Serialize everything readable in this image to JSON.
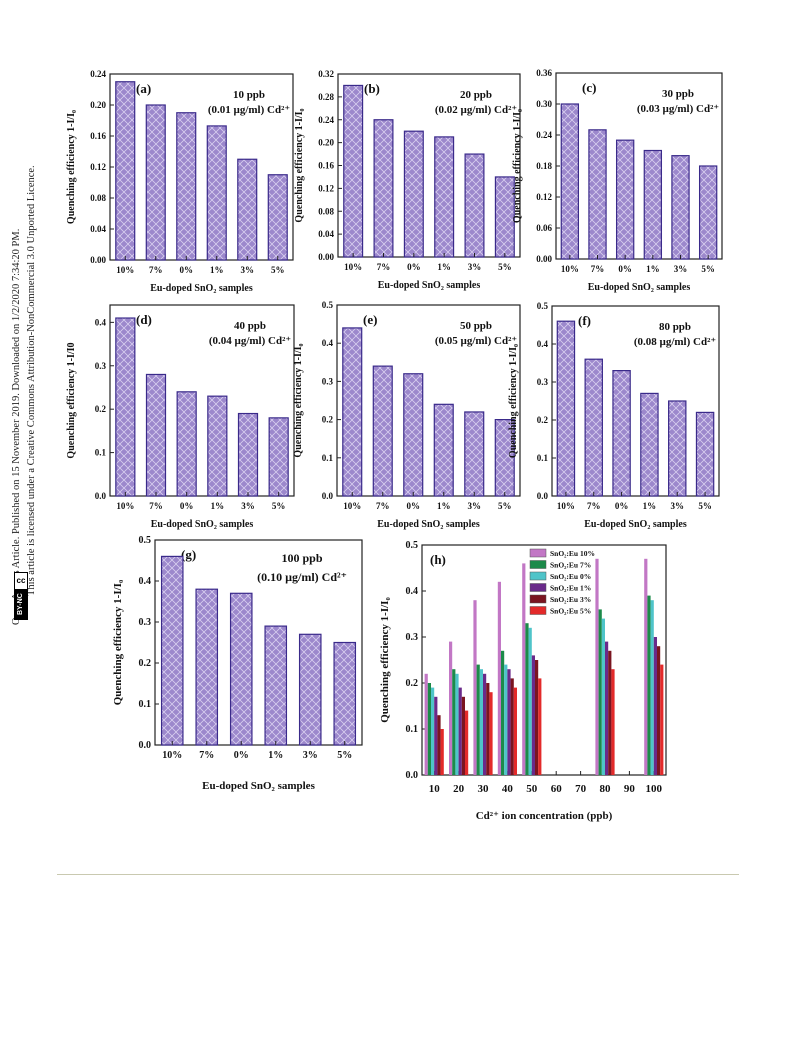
{
  "license_sidebar": {
    "line1": "Open Access Article. Published on 15 November 2019. Downloaded on 1/2/2020 7:34:20 PM.",
    "line2": "This article is licensed under a Creative Commons Attribution-NonCommercial 3.0 Unported Licence.",
    "cc_label": "cc",
    "nc_label": "BY-NC"
  },
  "colors": {
    "bar_fill": "#9c88cc",
    "bar_edge": "#3a2a8a",
    "axis": "#222222"
  },
  "chart_data": [
    {
      "type": "bar",
      "panel": "(a)",
      "annotation_line1": "10 ppb",
      "annotation_line2": "(0.01 µg/ml) Cd²⁺",
      "categories": [
        "10%",
        "7%",
        "0%",
        "1%",
        "3%",
        "5%"
      ],
      "values": [
        0.23,
        0.2,
        0.19,
        0.173,
        0.13,
        0.11
      ],
      "xlabel": "Eu-doped SnO₂ samples",
      "ylabel": "Quenching efficiency 1-I/I₀",
      "ylim": [
        0,
        0.24
      ],
      "ytick_labels": [
        "0.00",
        "0.04",
        "0.08",
        "0.12",
        "0.16",
        "0.20",
        "0.24"
      ]
    },
    {
      "type": "bar",
      "panel": "(b)",
      "annotation_line1": "20 ppb",
      "annotation_line2": "(0.02 µg/ml) Cd²⁺",
      "categories": [
        "10%",
        "7%",
        "0%",
        "1%",
        "3%",
        "5%"
      ],
      "values": [
        0.3,
        0.24,
        0.22,
        0.21,
        0.18,
        0.14
      ],
      "xlabel": "Eu-doped SnO₂ samples",
      "ylabel": "Quenching efficiency 1-I/I₀",
      "ylim": [
        0,
        0.32
      ],
      "ytick_labels": [
        "0.00",
        "0.04",
        "0.08",
        "0.12",
        "0.16",
        "0.20",
        "0.24",
        "0.28",
        "0.32"
      ]
    },
    {
      "type": "bar",
      "panel": "(c)",
      "annotation_line1": "30 ppb",
      "annotation_line2": "(0.03 µg/ml) Cd²⁺",
      "categories": [
        "10%",
        "7%",
        "0%",
        "1%",
        "3%",
        "5%"
      ],
      "values": [
        0.3,
        0.25,
        0.23,
        0.21,
        0.2,
        0.18
      ],
      "xlabel": "Eu-doped SnO₂ samples",
      "ylabel": "Quenching efficiency 1-I/I₀",
      "ylim": [
        0,
        0.36
      ],
      "ytick_labels": [
        "0.00",
        "0.06",
        "0.12",
        "0.18",
        "0.24",
        "0.30",
        "0.36"
      ]
    },
    {
      "type": "bar",
      "panel": "(d)",
      "annotation_line1": "40 ppb",
      "annotation_line2": "(0.04 µg/ml) Cd²⁺",
      "categories": [
        "10%",
        "7%",
        "0%",
        "1%",
        "3%",
        "5%"
      ],
      "values": [
        0.41,
        0.28,
        0.24,
        0.23,
        0.19,
        0.18
      ],
      "xlabel": "Eu-doped SnO₂ samples",
      "ylabel": "Quenching efficiency 1-I/I0",
      "ylim": [
        0,
        0.44
      ],
      "ytick_labels": [
        "0.0",
        "0.1",
        "0.2",
        "0.3",
        "0.4"
      ]
    },
    {
      "type": "bar",
      "panel": "(e)",
      "annotation_line1": "50 ppb",
      "annotation_line2": "(0.05 µg/ml) Cd²⁺",
      "categories": [
        "10%",
        "7%",
        "0%",
        "1%",
        "3%",
        "5%"
      ],
      "values": [
        0.44,
        0.34,
        0.32,
        0.24,
        0.22,
        0.2
      ],
      "xlabel": "Eu-doped SnO₂ samples",
      "ylabel": "Quenching efficiency 1-I/I₀",
      "ylim": [
        0,
        0.5
      ],
      "ytick_labels": [
        "0.0",
        "0.1",
        "0.2",
        "0.3",
        "0.4",
        "0.5"
      ]
    },
    {
      "type": "bar",
      "panel": "(f)",
      "annotation_line1": "80 ppb",
      "annotation_line2": "(0.08 µg/ml) Cd²⁺",
      "categories": [
        "10%",
        "7%",
        "0%",
        "1%",
        "3%",
        "5%"
      ],
      "values": [
        0.46,
        0.36,
        0.33,
        0.27,
        0.25,
        0.22
      ],
      "xlabel": "Eu-doped SnO₂ samples",
      "ylabel": "Quenching efficiency 1-I/I₀",
      "ylim": [
        0,
        0.5
      ],
      "ytick_labels": [
        "0.0",
        "0.1",
        "0.2",
        "0.3",
        "0.4",
        "0.5"
      ]
    },
    {
      "type": "bar",
      "panel": "(g)",
      "annotation_line1": "100 ppb",
      "annotation_line2": "(0.10 µg/ml) Cd²⁺",
      "categories": [
        "10%",
        "7%",
        "0%",
        "1%",
        "3%",
        "5%"
      ],
      "values": [
        0.46,
        0.38,
        0.37,
        0.29,
        0.27,
        0.25
      ],
      "xlabel": "Eu-doped SnO₂ samples",
      "ylabel": "Quenching efficiency 1-I/I₀",
      "ylim": [
        0,
        0.5
      ],
      "ytick_labels": [
        "0.0",
        "0.1",
        "0.2",
        "0.3",
        "0.4",
        "0.5"
      ]
    },
    {
      "type": "bar",
      "panel": "(h)",
      "x": [
        10,
        20,
        30,
        40,
        50,
        60,
        70,
        80,
        90,
        100
      ],
      "categories": [
        "10",
        "20",
        "30",
        "40",
        "50",
        "60",
        "70",
        "80",
        "90",
        "100"
      ],
      "xlabel": "Cd²⁺ ion concentration (ppb)",
      "ylabel": "Quenching efficiency 1-I/I₀",
      "ylim": [
        0,
        0.5
      ],
      "ytick_labels": [
        "0.0",
        "0.1",
        "0.2",
        "0.3",
        "0.4",
        "0.5"
      ],
      "legend_position": "top-right",
      "series": [
        {
          "name": "SnO₂:Eu 10%",
          "color": "#c277c5",
          "values": [
            0.22,
            0.29,
            0.38,
            0.42,
            0.46,
            null,
            null,
            0.47,
            null,
            0.47
          ]
        },
        {
          "name": "SnO₂:Eu 7%",
          "color": "#1c8a4a",
          "values": [
            0.2,
            0.23,
            0.24,
            0.27,
            0.33,
            null,
            null,
            0.36,
            null,
            0.39
          ]
        },
        {
          "name": "SnO₂:Eu 0%",
          "color": "#4fc4c9",
          "values": [
            0.19,
            0.22,
            0.23,
            0.24,
            0.32,
            null,
            null,
            0.34,
            null,
            0.38
          ]
        },
        {
          "name": "SnO₂:Eu 1%",
          "color": "#6a2a8a",
          "values": [
            0.17,
            0.19,
            0.22,
            0.23,
            0.26,
            null,
            null,
            0.29,
            null,
            0.3
          ]
        },
        {
          "name": "SnO₂:Eu 3%",
          "color": "#7a1520",
          "values": [
            0.13,
            0.17,
            0.2,
            0.21,
            0.25,
            null,
            null,
            0.27,
            null,
            0.28
          ]
        },
        {
          "name": "SnO₂:Eu 5%",
          "color": "#e32a2a",
          "values": [
            0.1,
            0.14,
            0.18,
            0.19,
            0.21,
            null,
            null,
            0.23,
            null,
            0.24
          ]
        }
      ]
    }
  ]
}
